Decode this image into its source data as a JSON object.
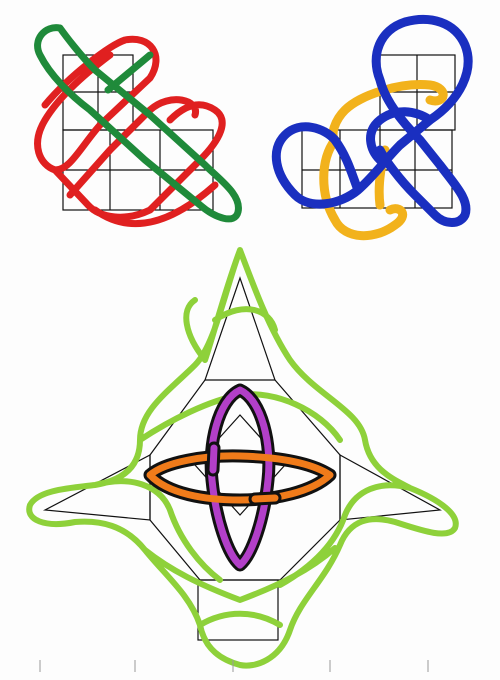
{
  "drawings": {
    "top_left_knot": {
      "strand_colors": {
        "red": "#e02020",
        "green": "#1f8a3a"
      }
    },
    "top_right_knot": {
      "strand_colors": {
        "blue": "#1a2fc0",
        "yellow": "#f2b21c"
      }
    },
    "bottom_knot": {
      "strand_colors": {
        "green": "#8ed13a",
        "purple": "#b23fc8",
        "orange": "#f07b1a",
        "outline": "#111111"
      }
    }
  }
}
